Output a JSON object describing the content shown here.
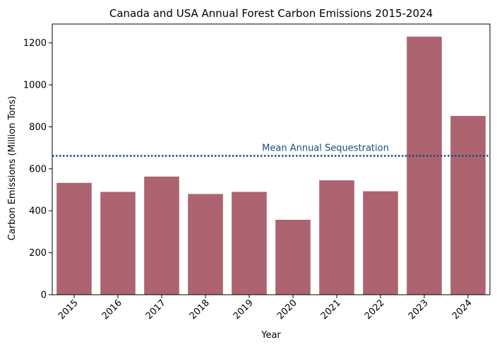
{
  "chart_data": {
    "type": "bar",
    "title": "Canada and USA Annual Forest Carbon Emissions 2015-2024",
    "xlabel": "Year",
    "ylabel": "Carbon Emissions (Million Tons)",
    "categories": [
      "2015",
      "2016",
      "2017",
      "2018",
      "2019",
      "2020",
      "2021",
      "2022",
      "2023",
      "2024"
    ],
    "values": [
      533,
      490,
      563,
      480,
      490,
      357,
      545,
      493,
      1230,
      852
    ],
    "ylim": [
      0,
      1290
    ],
    "yticks": [
      0,
      200,
      400,
      600,
      800,
      1000,
      1200
    ],
    "bar_color": "#ad6370",
    "grid": false,
    "reference_line": {
      "label": "Mean Annual Sequestration",
      "value": 662,
      "color": "#164a80",
      "style": "dotted"
    }
  }
}
